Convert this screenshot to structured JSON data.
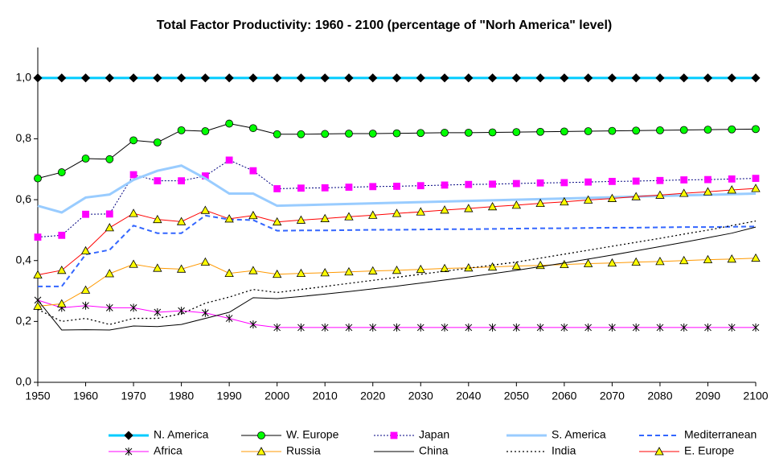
{
  "chart_data": {
    "type": "line",
    "title": "Total Factor Productivity: 1960 - 2100 (percentage of \"Norh America\" level)",
    "x": [
      1950,
      1955,
      1960,
      1965,
      1970,
      1975,
      1980,
      1985,
      1990,
      1995,
      2000,
      2005,
      2010,
      2015,
      2020,
      2025,
      2030,
      2035,
      2040,
      2045,
      2050,
      2055,
      2060,
      2065,
      2070,
      2075,
      2080,
      2085,
      2090,
      2095,
      2100
    ],
    "xlim": [
      1950,
      2100
    ],
    "xticks": [
      1950,
      1960,
      1970,
      1980,
      1990,
      2000,
      2010,
      2020,
      2030,
      2040,
      2050,
      2060,
      2070,
      2080,
      2090,
      2100
    ],
    "ylim": [
      0,
      1.1
    ],
    "yticks": [
      {
        "value": 0,
        "label": "0,0"
      },
      {
        "value": 0.2,
        "label": "0,2"
      },
      {
        "value": 0.4,
        "label": "0,4"
      },
      {
        "value": 0.6,
        "label": "0,6"
      },
      {
        "value": 0.8,
        "label": "0,8"
      },
      {
        "value": 1,
        "label": "1,0"
      }
    ],
    "legend": "bottom",
    "series": [
      {
        "name": "N. America",
        "color": "#00ccff",
        "width": 3,
        "dash": "none",
        "marker": "diamond",
        "marker_color": "#000000",
        "values": [
          1,
          1,
          1,
          1,
          1,
          1,
          1,
          1,
          1,
          1,
          1,
          1,
          1,
          1,
          1,
          1,
          1,
          1,
          1,
          1,
          1,
          1,
          1,
          1,
          1,
          1,
          1,
          1,
          1,
          1,
          1
        ]
      },
      {
        "name": "W. Europe",
        "color": "#000000",
        "width": 1,
        "dash": "none",
        "marker": "circle",
        "marker_color": "#00ff00",
        "values": [
          0.67,
          0.69,
          0.735,
          0.733,
          0.795,
          0.788,
          0.828,
          0.825,
          0.85,
          0.835,
          0.815,
          0.815,
          0.816,
          0.817,
          0.817,
          0.818,
          0.819,
          0.82,
          0.82,
          0.821,
          0.822,
          0.823,
          0.824,
          0.825,
          0.826,
          0.827,
          0.828,
          0.829,
          0.83,
          0.831,
          0.832
        ]
      },
      {
        "name": "Japan",
        "color": "#000080",
        "width": 1,
        "dash": "2,2",
        "marker": "square",
        "marker_color": "#ff00ff",
        "values": [
          0.477,
          0.483,
          0.552,
          0.553,
          0.682,
          0.662,
          0.662,
          0.678,
          0.73,
          0.695,
          0.636,
          0.638,
          0.639,
          0.641,
          0.643,
          0.644,
          0.646,
          0.648,
          0.65,
          0.651,
          0.653,
          0.655,
          0.656,
          0.658,
          0.66,
          0.661,
          0.663,
          0.665,
          0.666,
          0.668,
          0.67
        ]
      },
      {
        "name": "S. America",
        "color": "#99ccff",
        "width": 3,
        "dash": "none",
        "marker": "none",
        "marker_color": "#99ccff",
        "values": [
          0.58,
          0.558,
          0.607,
          0.617,
          0.665,
          0.695,
          0.712,
          0.67,
          0.62,
          0.62,
          0.58,
          0.582,
          0.584,
          0.586,
          0.588,
          0.59,
          0.592,
          0.594,
          0.596,
          0.598,
          0.6,
          0.602,
          0.604,
          0.606,
          0.608,
          0.61,
          0.612,
          0.614,
          0.616,
          0.618,
          0.62
        ]
      },
      {
        "name": "Mediterranean",
        "color": "#3366ff",
        "width": 2,
        "dash": "6,4",
        "marker": "none",
        "marker_color": "#3366ff",
        "values": [
          0.315,
          0.315,
          0.42,
          0.435,
          0.515,
          0.49,
          0.49,
          0.548,
          0.535,
          0.533,
          0.498,
          0.499,
          0.499,
          0.5,
          0.501,
          0.501,
          0.502,
          0.503,
          0.503,
          0.504,
          0.505,
          0.506,
          0.506,
          0.507,
          0.508,
          0.508,
          0.509,
          0.51,
          0.51,
          0.511,
          0.512
        ]
      },
      {
        "name": "Africa",
        "color": "#ff00ff",
        "width": 1,
        "dash": "none",
        "marker": "asterisk",
        "marker_color": "#000000",
        "values": [
          0.27,
          0.245,
          0.252,
          0.245,
          0.245,
          0.23,
          0.235,
          0.228,
          0.21,
          0.19,
          0.18,
          0.18,
          0.18,
          0.18,
          0.18,
          0.18,
          0.18,
          0.18,
          0.18,
          0.18,
          0.18,
          0.18,
          0.18,
          0.18,
          0.18,
          0.18,
          0.18,
          0.18,
          0.18,
          0.18,
          0.18
        ]
      },
      {
        "name": "Russia",
        "color": "#ff9900",
        "width": 1,
        "dash": "none",
        "marker": "triangle",
        "marker_color": "#ffff00",
        "values": [
          0.25,
          0.258,
          0.303,
          0.357,
          0.388,
          0.375,
          0.372,
          0.395,
          0.358,
          0.367,
          0.355,
          0.358,
          0.36,
          0.363,
          0.366,
          0.368,
          0.371,
          0.374,
          0.376,
          0.379,
          0.382,
          0.384,
          0.387,
          0.39,
          0.392,
          0.395,
          0.397,
          0.4,
          0.403,
          0.405,
          0.408
        ]
      },
      {
        "name": "China",
        "color": "#000000",
        "width": 1,
        "dash": "none",
        "marker": "none",
        "marker_color": "#000000",
        "values": [
          0.27,
          0.172,
          0.173,
          0.172,
          0.185,
          0.183,
          0.19,
          0.21,
          0.23,
          0.278,
          0.275,
          0.282,
          0.29,
          0.298,
          0.307,
          0.316,
          0.326,
          0.336,
          0.346,
          0.357,
          0.368,
          0.38,
          0.392,
          0.405,
          0.418,
          0.432,
          0.446,
          0.46,
          0.475,
          0.49,
          0.51
        ]
      },
      {
        "name": "India",
        "color": "#000000",
        "width": 1.3,
        "dash": "2,3",
        "marker": "none",
        "marker_color": "#000000",
        "values": [
          0.24,
          0.2,
          0.21,
          0.19,
          0.21,
          0.21,
          0.225,
          0.26,
          0.28,
          0.305,
          0.295,
          0.305,
          0.315,
          0.325,
          0.335,
          0.345,
          0.355,
          0.365,
          0.375,
          0.385,
          0.395,
          0.408,
          0.421,
          0.434,
          0.447,
          0.46,
          0.473,
          0.487,
          0.5,
          0.515,
          0.53
        ]
      },
      {
        "name": "E. Europe",
        "color": "#ff0000",
        "width": 1,
        "dash": "none",
        "marker": "triangle",
        "marker_color": "#ffff00",
        "values": [
          0.353,
          0.368,
          0.432,
          0.508,
          0.555,
          0.535,
          0.528,
          0.565,
          0.537,
          0.548,
          0.527,
          0.533,
          0.538,
          0.544,
          0.549,
          0.555,
          0.56,
          0.566,
          0.571,
          0.577,
          0.582,
          0.588,
          0.593,
          0.599,
          0.604,
          0.61,
          0.615,
          0.621,
          0.626,
          0.632,
          0.637
        ]
      }
    ]
  }
}
